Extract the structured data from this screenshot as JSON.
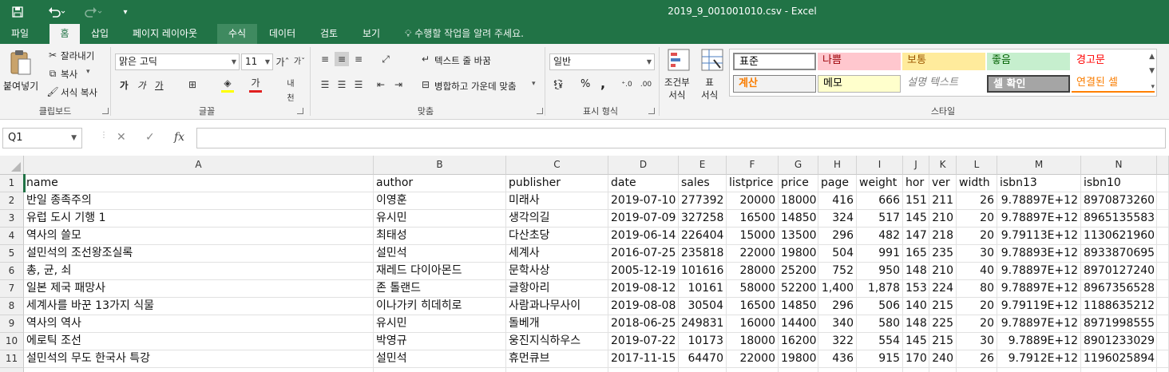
{
  "window": {
    "title": "2019_9_001001010.csv - Excel"
  },
  "quick_access": {
    "save_icon": "save-icon",
    "undo_icon": "undo-icon",
    "redo_icon": "redo-icon",
    "customize_icon": "customize-icon"
  },
  "tabs": [
    {
      "label": "파일"
    },
    {
      "label": "홈"
    },
    {
      "label": "삽입"
    },
    {
      "label": "페이지 레이아웃"
    },
    {
      "label": "수식"
    },
    {
      "label": "데이터"
    },
    {
      "label": "검토"
    },
    {
      "label": "보기"
    }
  ],
  "tell_me": "수행할 작업을 알려 주세요.",
  "ribbon": {
    "clipboard": {
      "paste": "붙여넣기",
      "cut": "잘라내기",
      "copy": "복사",
      "format_painter": "서식 복사",
      "group": "클립보드"
    },
    "font": {
      "name": "맑은 고딕",
      "size": "11",
      "bold": "가",
      "italic": "가",
      "underline": "가",
      "group": "글꼴"
    },
    "alignment": {
      "wrap": "텍스트 줄 바꿈",
      "merge": "병합하고 가운데 맞춤",
      "group": "맞춤"
    },
    "number": {
      "format": "일반",
      "percent": "%",
      "comma": ",",
      "group": "표시 형식"
    },
    "conditional": "조건부\n서식",
    "table_format": "표\n서식",
    "styles": {
      "group": "스타일",
      "cells": [
        {
          "label": "표준"
        },
        {
          "label": "나쁨"
        },
        {
          "label": "보통"
        },
        {
          "label": "좋음"
        },
        {
          "label": "경고문"
        },
        {
          "label": "계산"
        },
        {
          "label": "메모"
        },
        {
          "label": "설명 텍스트"
        },
        {
          "label": "셀 확인"
        },
        {
          "label": "연결된 셀"
        }
      ]
    }
  },
  "formula_bar": {
    "name_box": "Q1",
    "cancel": "✕",
    "enter": "✓",
    "fx": "fx",
    "value": ""
  },
  "sheet": {
    "columns": [
      "A",
      "B",
      "C",
      "D",
      "E",
      "F",
      "G",
      "H",
      "I",
      "J",
      "K",
      "L",
      "M",
      "N"
    ],
    "header": [
      "name",
      "author",
      "publisher",
      "date",
      "sales",
      "listprice",
      "price",
      "page",
      "weight",
      "hor",
      "ver",
      "width",
      "isbn13",
      "isbn10"
    ],
    "rows": [
      [
        "반일 종족주의",
        "이영훈",
        "미래사",
        "2019-07-10",
        "277392",
        "20000",
        "18000",
        "416",
        "666",
        "151",
        "211",
        "26",
        "9.78897E+12",
        "8970873260"
      ],
      [
        "유럽 도시 기행 1",
        "유시민",
        "생각의길",
        "2019-07-09",
        "327258",
        "16500",
        "14850",
        "324",
        "517",
        "145",
        "210",
        "20",
        "9.78897E+12",
        "8965135583"
      ],
      [
        "역사의 쓸모",
        "최태성",
        "다산초당",
        "2019-06-14",
        "226404",
        "15000",
        "13500",
        "296",
        "482",
        "147",
        "218",
        "20",
        "9.79113E+12",
        "1130621960"
      ],
      [
        "설민석의 조선왕조실록",
        "설민석",
        "세계사",
        "2016-07-25",
        "235818",
        "22000",
        "19800",
        "504",
        "991",
        "165",
        "235",
        "30",
        "9.78893E+12",
        "8933870695"
      ],
      [
        "총, 균, 쇠",
        "재레드 다이아몬드",
        "문학사상",
        "2005-12-19",
        "101616",
        "28000",
        "25200",
        "752",
        "950",
        "148",
        "210",
        "40",
        "9.78897E+12",
        "8970127240"
      ],
      [
        "일본 제국 패망사",
        "존 톨랜드",
        "글항아리",
        "2019-08-12",
        "10161",
        "58000",
        "52200",
        "1,400",
        "1,878",
        "153",
        "224",
        "80",
        "9.78897E+12",
        "8967356528"
      ],
      [
        "세계사를 바꾼 13가지 식물",
        "이나가키 히데히로",
        "사람과나무사이",
        "2019-08-08",
        "30504",
        "16500",
        "14850",
        "296",
        "506",
        "140",
        "215",
        "20",
        "9.79119E+12",
        "1188635212"
      ],
      [
        "역사의 역사",
        "유시민",
        "돌베개",
        "2018-06-25",
        "249831",
        "16000",
        "14400",
        "340",
        "580",
        "148",
        "225",
        "20",
        "9.78897E+12",
        "8971998555"
      ],
      [
        "에로틱 조선",
        "박영규",
        "웅진지식하우스",
        "2019-07-22",
        "10173",
        "18000",
        "16200",
        "322",
        "554",
        "145",
        "215",
        "30",
        "9.7889E+12",
        "8901233029"
      ],
      [
        "설민석의 무도 한국사 특강",
        "설민석",
        "휴먼큐브",
        "2017-11-15",
        "64470",
        "22000",
        "19800",
        "436",
        "915",
        "170",
        "240",
        "26",
        "9.7912E+12",
        "1196025894"
      ]
    ]
  }
}
